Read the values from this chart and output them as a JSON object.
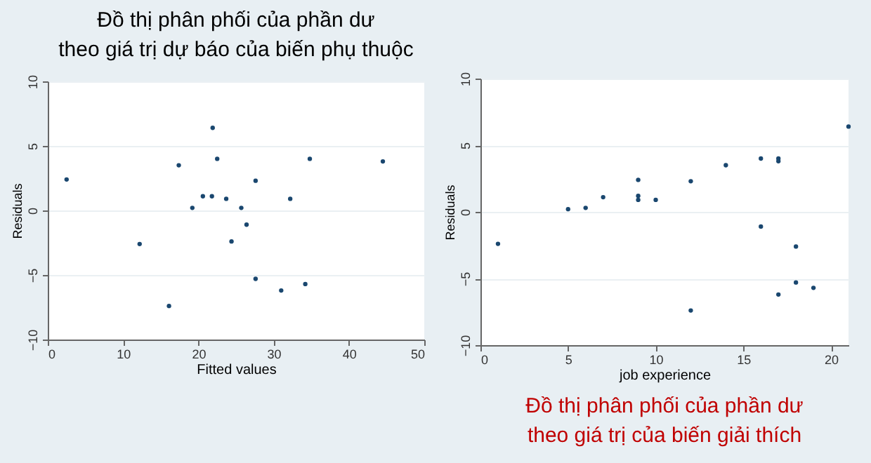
{
  "chart_data": [
    {
      "type": "scatter",
      "title": "Đồ thị phân phối của phần dư\ntheo giá trị dự báo của biến phụ thuộc",
      "xlabel": "Fitted values",
      "ylabel": "Residuals",
      "xlim": [
        0,
        50
      ],
      "xticks": [
        0,
        10,
        20,
        30,
        40,
        50
      ],
      "ylim": [
        -10,
        10
      ],
      "yticks": [
        -10,
        -5,
        0,
        5,
        10
      ],
      "grid": "y",
      "marker": "circle",
      "legend": false,
      "x": [
        2.5,
        12.2,
        16.1,
        17.4,
        19.2,
        20.6,
        21.8,
        21.9,
        22.5,
        23.7,
        24.4,
        25.7,
        26.4,
        27.6,
        27.6,
        31.0,
        32.2,
        34.2,
        34.8,
        44.5
      ],
      "series": [
        {
          "color": "#1a476f",
          "values": [
            2.4,
            -2.6,
            -7.4,
            3.5,
            0.2,
            1.1,
            1.1,
            6.4,
            4.0,
            0.9,
            -2.4,
            0.2,
            -1.1,
            2.3,
            -5.3,
            -6.2,
            0.9,
            -5.7,
            4.0,
            3.8
          ]
        }
      ]
    },
    {
      "type": "scatter",
      "title": "Đồ thị phân phối của phần dư\ntheo giá trị của biến giải thích",
      "xlabel": "job experience",
      "ylabel": "Residuals",
      "xlim": [
        0,
        21
      ],
      "xticks": [
        0,
        5,
        10,
        15,
        20
      ],
      "ylim": [
        -10,
        10
      ],
      "yticks": [
        -10,
        -5,
        0,
        5,
        10
      ],
      "grid": "y",
      "marker": "circle",
      "legend": false,
      "x": [
        1,
        5,
        6,
        7,
        9,
        9,
        9,
        10,
        12,
        12,
        14,
        16,
        16,
        17,
        17,
        17,
        18,
        18,
        19,
        21
      ],
      "series": [
        {
          "color": "#1a476f",
          "values": [
            -2.4,
            0.2,
            0.3,
            1.1,
            2.4,
            1.2,
            0.9,
            0.9,
            2.3,
            -7.4,
            3.5,
            4.0,
            -1.1,
            4.0,
            3.8,
            -6.2,
            -2.6,
            -5.3,
            -5.7,
            6.4
          ]
        }
      ]
    }
  ]
}
